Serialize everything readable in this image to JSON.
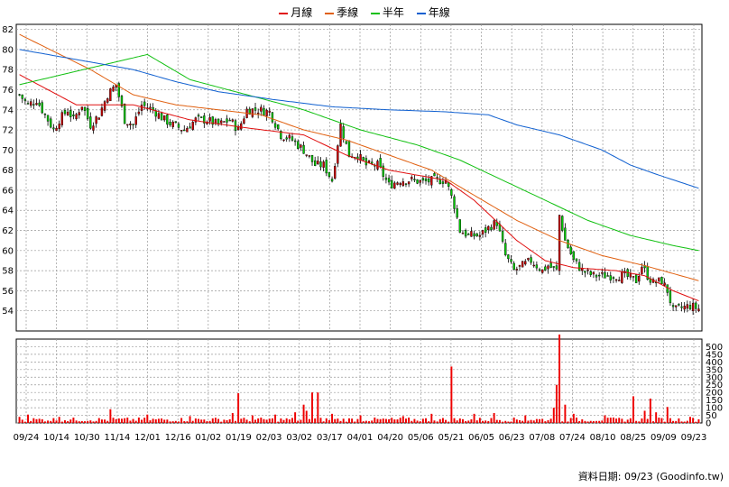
{
  "legend": [
    {
      "label": "月線",
      "color": "#e01010"
    },
    {
      "label": "季線",
      "color": "#e06010"
    },
    {
      "label": "半年",
      "color": "#10c010"
    },
    {
      "label": "年線",
      "color": "#1060d0"
    }
  ],
  "credit": "資料日期: 09/23 (Goodinfo.tw)",
  "colors": {
    "up": "#cc0000",
    "down": "#00cc00",
    "grid": "#999999",
    "volume": "#ee0000"
  },
  "chart_data": [
    {
      "type": "candlestick",
      "price_ylim": [
        52,
        82.5
      ],
      "price_ticks": [
        54,
        56,
        58,
        60,
        62,
        64,
        66,
        68,
        70,
        72,
        74,
        76,
        78,
        80,
        82
      ],
      "x_ticks": [
        "09/24",
        "10/14",
        "10/30",
        "11/14",
        "12/01",
        "12/16",
        "01/02",
        "01/19",
        "02/03",
        "03/02",
        "03/17",
        "04/01",
        "04/20",
        "05/06",
        "05/21",
        "06/05",
        "06/23",
        "07/08",
        "07/24",
        "08/10",
        "08/25",
        "09/09",
        "09/23"
      ],
      "price_anchors": [
        [
          0,
          75.5
        ],
        [
          3,
          74.5
        ],
        [
          6,
          75
        ],
        [
          9,
          73.5
        ],
        [
          12,
          72
        ],
        [
          14,
          73
        ],
        [
          17,
          74
        ],
        [
          19,
          73
        ],
        [
          22,
          74.5
        ],
        [
          25,
          72.5
        ],
        [
          28,
          73.5
        ],
        [
          31,
          75.5
        ],
        [
          34,
          76.5
        ],
        [
          37,
          73
        ],
        [
          40,
          72.5
        ],
        [
          43,
          74.5
        ],
        [
          47,
          74
        ],
        [
          51,
          73
        ],
        [
          54,
          72.5
        ],
        [
          58,
          72
        ],
        [
          62,
          73
        ],
        [
          66,
          73
        ],
        [
          70,
          72.5
        ],
        [
          74,
          73
        ],
        [
          77,
          72
        ],
        [
          80,
          74
        ],
        [
          84,
          74
        ],
        [
          88,
          73.8
        ],
        [
          92,
          71.5
        ],
        [
          96,
          71
        ],
        [
          100,
          70
        ],
        [
          104,
          68.5
        ],
        [
          107,
          68.5
        ],
        [
          110,
          67
        ],
        [
          113,
          72.5
        ],
        [
          116,
          69.5
        ],
        [
          119,
          69.5
        ],
        [
          122,
          68.5
        ],
        [
          126,
          68.5
        ],
        [
          130,
          66.5
        ],
        [
          134,
          67
        ],
        [
          138,
          67
        ],
        [
          142,
          66.8
        ],
        [
          146,
          67
        ],
        [
          150,
          67
        ],
        [
          153,
          64.5
        ],
        [
          155,
          62
        ],
        [
          158,
          61.5
        ],
        [
          162,
          61.5
        ],
        [
          166,
          62.5
        ],
        [
          168,
          62.8
        ],
        [
          171,
          59.5
        ],
        [
          174,
          58
        ],
        [
          177,
          58.5
        ],
        [
          180,
          59
        ],
        [
          184,
          58
        ],
        [
          186,
          58.5
        ],
        [
          189,
          58
        ],
        [
          190,
          63.5
        ],
        [
          192,
          61
        ],
        [
          195,
          59
        ],
        [
          198,
          58
        ],
        [
          202,
          57.5
        ],
        [
          206,
          57.5
        ],
        [
          210,
          57.5
        ],
        [
          213,
          57.5
        ],
        [
          217,
          57
        ],
        [
          219,
          58.5
        ],
        [
          221,
          57.5
        ],
        [
          223,
          56.8
        ],
        [
          226,
          57
        ],
        [
          228,
          56
        ],
        [
          230,
          54
        ],
        [
          233,
          54.3
        ],
        [
          236,
          54.5
        ],
        [
          239,
          54.2
        ]
      ],
      "ma_series": [
        {
          "name": "月線",
          "color": "#e01010",
          "points": [
            [
              0,
              77.5
            ],
            [
              20,
              74.5
            ],
            [
              40,
              74.5
            ],
            [
              60,
              73
            ],
            [
              80,
              72.2
            ],
            [
              100,
              71.5
            ],
            [
              115,
              69.5
            ],
            [
              130,
              68
            ],
            [
              150,
              67
            ],
            [
              160,
              65
            ],
            [
              175,
              61
            ],
            [
              185,
              59
            ],
            [
              195,
              58.3
            ],
            [
              210,
              58
            ],
            [
              220,
              57.5
            ],
            [
              230,
              56
            ],
            [
              239,
              55
            ]
          ]
        },
        {
          "name": "季線",
          "color": "#e06010",
          "points": [
            [
              0,
              81.5
            ],
            [
              25,
              78
            ],
            [
              40,
              75.5
            ],
            [
              55,
              74.5
            ],
            [
              70,
              74
            ],
            [
              85,
              73.5
            ],
            [
              100,
              72
            ],
            [
              115,
              71
            ],
            [
              130,
              69.5
            ],
            [
              145,
              68
            ],
            [
              160,
              65.5
            ],
            [
              175,
              63
            ],
            [
              190,
              61
            ],
            [
              205,
              59.5
            ],
            [
              220,
              58.5
            ],
            [
              239,
              57
            ]
          ]
        },
        {
          "name": "半年",
          "color": "#10c010",
          "points": [
            [
              0,
              76.5
            ],
            [
              15,
              77.5
            ],
            [
              30,
              78.5
            ],
            [
              45,
              79.5
            ],
            [
              60,
              77
            ],
            [
              80,
              75.5
            ],
            [
              100,
              74
            ],
            [
              120,
              72
            ],
            [
              140,
              70.5
            ],
            [
              155,
              69
            ],
            [
              170,
              67
            ],
            [
              185,
              65
            ],
            [
              200,
              63
            ],
            [
              215,
              61.5
            ],
            [
              230,
              60.5
            ],
            [
              239,
              60
            ]
          ]
        },
        {
          "name": "年線",
          "color": "#1060d0",
          "points": [
            [
              0,
              80
            ],
            [
              20,
              79
            ],
            [
              40,
              78
            ],
            [
              55,
              76.8
            ],
            [
              70,
              75.8
            ],
            [
              90,
              75
            ],
            [
              110,
              74.3
            ],
            [
              130,
              74
            ],
            [
              150,
              73.8
            ],
            [
              165,
              73.5
            ],
            [
              175,
              72.5
            ],
            [
              190,
              71.5
            ],
            [
              205,
              70
            ],
            [
              215,
              68.5
            ],
            [
              225,
              67.5
            ],
            [
              239,
              66.2
            ]
          ]
        }
      ],
      "volume_ylim": [
        0,
        550
      ],
      "volume_ticks": [
        0,
        50,
        100,
        150,
        200,
        250,
        300,
        350,
        400,
        450,
        500
      ],
      "volume_spikes": [
        [
          0,
          40
        ],
        [
          3,
          55
        ],
        [
          14,
          40
        ],
        [
          32,
          90
        ],
        [
          45,
          55
        ],
        [
          60,
          45
        ],
        [
          75,
          65
        ],
        [
          77,
          195
        ],
        [
          82,
          50
        ],
        [
          90,
          55
        ],
        [
          97,
          70
        ],
        [
          100,
          120
        ],
        [
          101,
          80
        ],
        [
          103,
          200
        ],
        [
          105,
          200
        ],
        [
          110,
          60
        ],
        [
          120,
          50
        ],
        [
          135,
          45
        ],
        [
          145,
          60
        ],
        [
          152,
          370
        ],
        [
          160,
          60
        ],
        [
          167,
          65
        ],
        [
          178,
          50
        ],
        [
          188,
          100
        ],
        [
          189,
          250
        ],
        [
          190,
          580
        ],
        [
          192,
          120
        ],
        [
          195,
          60
        ],
        [
          206,
          50
        ],
        [
          216,
          175
        ],
        [
          220,
          80
        ],
        [
          222,
          160
        ],
        [
          224,
          70
        ],
        [
          228,
          105
        ],
        [
          236,
          40
        ]
      ]
    }
  ]
}
